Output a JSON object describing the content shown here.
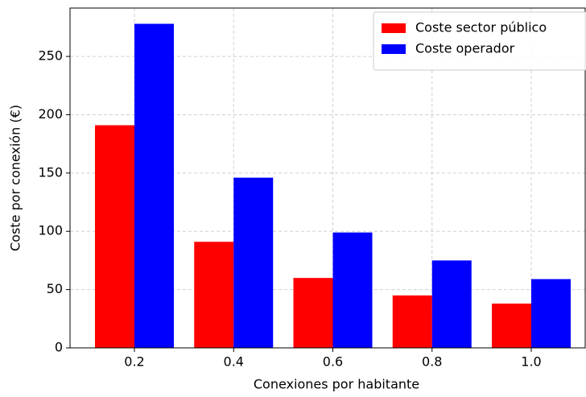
{
  "chart_data": {
    "type": "bar",
    "x_label": "Conexiones por habitante",
    "y_label": "Coste por conexión (€)",
    "categories": [
      "0.2",
      "0.4",
      "0.6",
      "0.8",
      "1.0"
    ],
    "series": [
      {
        "name": "Coste sector público",
        "color": "#ff0000",
        "values": [
          191,
          91,
          60,
          45,
          38
        ]
      },
      {
        "name": "Coste operador",
        "color": "#0000ff",
        "values": [
          278,
          146,
          99,
          75,
          59
        ]
      }
    ],
    "ylim": [
      0,
      291.5
    ],
    "yticks": [
      0,
      50,
      100,
      150,
      200,
      250
    ],
    "grid": true,
    "legend": "upper right"
  }
}
